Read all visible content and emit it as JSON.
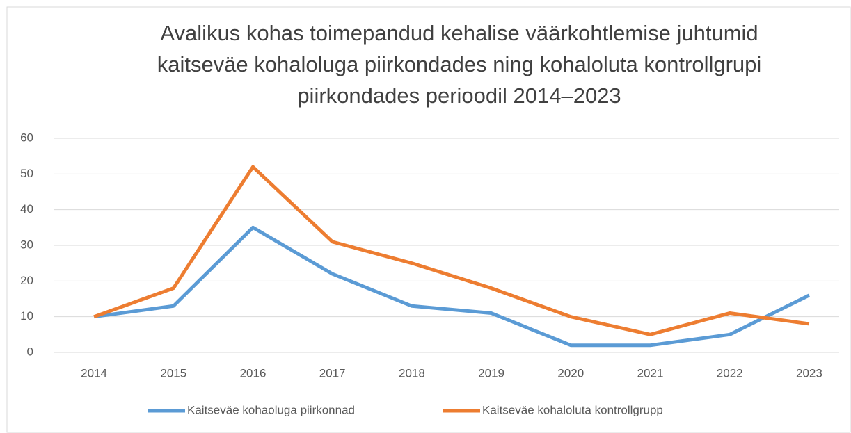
{
  "chart_data": {
    "type": "line",
    "title": [
      "Avalikus kohas toimepandud kehalise väärkohtlemise juhtumid",
      "kaitseväe kohaloluga piirkondades ning kohaloluta kontrollgrupi",
      "piirkondades perioodil 2014–2023"
    ],
    "categories": [
      "2014",
      "2015",
      "2016",
      "2017",
      "2018",
      "2019",
      "2020",
      "2021",
      "2022",
      "2023"
    ],
    "series": [
      {
        "name": "Kaitseväe kohaoluga piirkonnad",
        "color": "#5b9bd5",
        "values": [
          10,
          13,
          35,
          22,
          13,
          11,
          2,
          2,
          5,
          16
        ]
      },
      {
        "name": "Kaitseväe kohaloluta kontrollgrupp",
        "color": "#ed7d31",
        "values": [
          10,
          18,
          52,
          31,
          25,
          18,
          10,
          5,
          11,
          8
        ]
      }
    ],
    "ylim": [
      0,
      60
    ],
    "yticks": [
      0,
      10,
      20,
      30,
      40,
      50,
      60
    ],
    "grid": true,
    "legend": "bottom"
  }
}
